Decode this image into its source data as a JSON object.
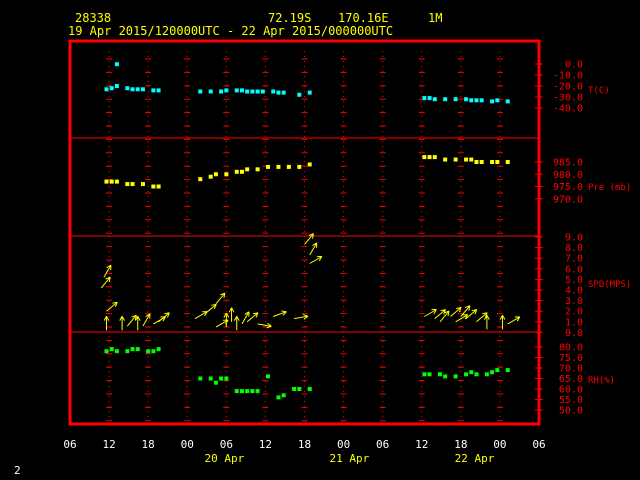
{
  "header": {
    "station": "28338",
    "lat": "72.19S",
    "lon": "170.16E",
    "interval": "1M",
    "period": "19 Apr 2015/120000UTC - 22 Apr 2015/000000UTC"
  },
  "footer": {
    "page": "2"
  },
  "colors": {
    "frame": "#ff0000",
    "grid": "#ff0000",
    "temp": "#00ffff",
    "pres": "#ffff00",
    "wind": "#ffff00",
    "rh": "#00ff00",
    "header": "#ffff00"
  },
  "chart_data": {
    "type": "scatter",
    "x_axis": {
      "range_hours": [
        -6,
        84
      ],
      "hour_labels": [
        "06",
        "12",
        "18",
        "00",
        "06",
        "12",
        "18",
        "00",
        "06",
        "12",
        "18",
        "00",
        "06"
      ],
      "date_labels": [
        {
          "label": "20 Apr",
          "hour": 24
        },
        {
          "label": "21 Apr",
          "hour": 48
        },
        {
          "label": "22 Apr",
          "hour": 72
        }
      ]
    },
    "panels": [
      {
        "name": "temperature",
        "unit_label": "T(C)",
        "ylim": [
          -40,
          5
        ],
        "ticks": [
          "0.0",
          "-10.0",
          "-20.0",
          "-30.0",
          "-40.0"
        ],
        "tick_values": [
          0,
          -10,
          -20,
          -30,
          -40
        ],
        "points": [
          [
            1,
            -23
          ],
          [
            2,
            -22
          ],
          [
            3,
            -20
          ],
          [
            5,
            -22
          ],
          [
            6,
            -23
          ],
          [
            7,
            -23
          ],
          [
            8,
            -23
          ],
          [
            10,
            -24
          ],
          [
            11,
            -24
          ],
          [
            19,
            -25
          ],
          [
            21,
            -25
          ],
          [
            23,
            -25
          ],
          [
            24,
            -24
          ],
          [
            26,
            -24
          ],
          [
            27,
            -24
          ],
          [
            28,
            -25
          ],
          [
            29,
            -25
          ],
          [
            30,
            -25
          ],
          [
            31,
            -25
          ],
          [
            33,
            -25
          ],
          [
            34,
            -26
          ],
          [
            35,
            -26
          ],
          [
            38,
            -28
          ],
          [
            40,
            -26
          ],
          [
            62,
            -31
          ],
          [
            63,
            -31
          ],
          [
            64,
            -32
          ],
          [
            66,
            -32
          ],
          [
            68,
            -32
          ],
          [
            70,
            -32
          ],
          [
            71,
            -33
          ],
          [
            72,
            -33
          ],
          [
            73,
            -33
          ],
          [
            75,
            -34
          ],
          [
            76,
            -33
          ],
          [
            78,
            -34
          ]
        ],
        "outlier": [
          3,
          -0.2
        ]
      },
      {
        "name": "pressure",
        "unit_label": "Pre (mb)",
        "ylim": [
          970,
          989.5
        ],
        "ticks": [
          "985.0",
          "980.0",
          "975.0",
          "970.0"
        ],
        "tick_values": [
          985,
          980,
          975,
          970
        ],
        "points": [
          [
            1,
            977
          ],
          [
            2,
            977
          ],
          [
            3,
            977
          ],
          [
            5,
            976
          ],
          [
            6,
            976
          ],
          [
            8,
            976
          ],
          [
            10,
            975
          ],
          [
            11,
            975
          ],
          [
            19,
            978
          ],
          [
            21,
            979
          ],
          [
            22,
            980
          ],
          [
            24,
            980
          ],
          [
            26,
            981
          ],
          [
            27,
            981
          ],
          [
            28,
            982
          ],
          [
            30,
            982
          ],
          [
            32,
            983
          ],
          [
            34,
            983
          ],
          [
            36,
            983
          ],
          [
            38,
            983
          ],
          [
            40,
            984
          ],
          [
            62,
            987
          ],
          [
            63,
            987
          ],
          [
            64,
            987
          ],
          [
            66,
            986
          ],
          [
            68,
            986
          ],
          [
            70,
            986
          ],
          [
            71,
            986
          ],
          [
            72,
            985
          ],
          [
            73,
            985
          ],
          [
            75,
            985
          ],
          [
            76,
            985
          ],
          [
            78,
            985
          ]
        ]
      },
      {
        "name": "wind",
        "unit_label": "SPD(MPS)",
        "ylim": [
          0,
          9
        ],
        "ticks": [
          "9.0",
          "8.0",
          "7.0",
          "6.0",
          "5.0",
          "4.0",
          "3.0",
          "2.0",
          "1.0",
          "0.0"
        ],
        "tick_values": [
          9,
          8,
          7,
          6,
          5,
          4,
          3,
          2,
          1,
          0
        ],
        "vectors": [
          [
            0,
            4.2,
            40
          ],
          [
            0.5,
            5.2,
            30
          ],
          [
            1,
            2.0,
            50
          ],
          [
            1,
            0.2,
            0
          ],
          [
            4,
            0.2,
            0
          ],
          [
            5,
            0.6,
            40
          ],
          [
            7,
            0.2,
            0
          ],
          [
            8,
            0.6,
            30
          ],
          [
            10,
            0.8,
            60
          ],
          [
            11,
            1.0,
            50
          ],
          [
            18,
            1.3,
            60
          ],
          [
            20,
            1.8,
            50
          ],
          [
            22,
            2.7,
            40
          ],
          [
            22,
            0.5,
            60
          ],
          [
            24,
            0.5,
            0
          ],
          [
            25,
            1.0,
            0
          ],
          [
            26,
            0.2,
            0
          ],
          [
            27,
            0.8,
            30
          ],
          [
            28,
            1.0,
            50
          ],
          [
            30,
            0.8,
            100
          ],
          [
            33,
            1.5,
            70
          ],
          [
            37,
            1.3,
            80
          ],
          [
            39,
            8.3,
            40
          ],
          [
            40,
            6.5,
            60
          ],
          [
            40,
            7.3,
            30
          ],
          [
            62,
            1.5,
            60
          ],
          [
            64,
            1.3,
            50
          ],
          [
            65,
            1.0,
            40
          ],
          [
            67,
            1.5,
            50
          ],
          [
            68,
            1.0,
            60
          ],
          [
            69,
            1.5,
            40
          ],
          [
            70,
            1.3,
            50
          ],
          [
            72,
            1.0,
            50
          ],
          [
            74,
            0.3,
            0
          ],
          [
            77,
            0.3,
            0
          ],
          [
            78,
            0.8,
            60
          ]
        ]
      },
      {
        "name": "humidity",
        "unit_label": "RH(%)",
        "ylim": [
          50,
          83
        ],
        "ticks": [
          "80.0",
          "75.0",
          "70.0",
          "65.0",
          "60.0",
          "55.0",
          "50.0"
        ],
        "tick_values": [
          80,
          75,
          70,
          65,
          60,
          55,
          50
        ],
        "points": [
          [
            1,
            78
          ],
          [
            2,
            79
          ],
          [
            3,
            78
          ],
          [
            5,
            78
          ],
          [
            6,
            79
          ],
          [
            7,
            79
          ],
          [
            9,
            78
          ],
          [
            10,
            78
          ],
          [
            11,
            79
          ],
          [
            19,
            65
          ],
          [
            21,
            65
          ],
          [
            22,
            63
          ],
          [
            23,
            65
          ],
          [
            24,
            65
          ],
          [
            26,
            59
          ],
          [
            27,
            59
          ],
          [
            28,
            59
          ],
          [
            29,
            59
          ],
          [
            30,
            59
          ],
          [
            32,
            66
          ],
          [
            34,
            56
          ],
          [
            35,
            57
          ],
          [
            37,
            60
          ],
          [
            38,
            60
          ],
          [
            40,
            60
          ],
          [
            62,
            67
          ],
          [
            63,
            67
          ],
          [
            65,
            67
          ],
          [
            66,
            66
          ],
          [
            68,
            66
          ],
          [
            70,
            67
          ],
          [
            71,
            68
          ],
          [
            72,
            67
          ],
          [
            74,
            67
          ],
          [
            75,
            68
          ],
          [
            76,
            69
          ],
          [
            78,
            69
          ]
        ]
      }
    ]
  }
}
